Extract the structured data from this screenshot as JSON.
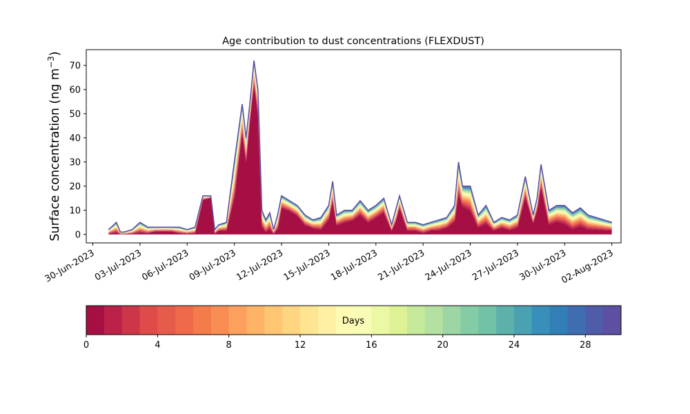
{
  "chart_data": {
    "type": "area",
    "title": "Age contribution to dust concentrations (FLEXDUST)",
    "ylabel": "Surface concentration (ng m",
    "ylabel_sup": "−3",
    "ylabel_close": ")",
    "xlabel": "",
    "x_axis": "date",
    "xlim": [
      "2023-06-29T14:00",
      "2023-08-02T14:00"
    ],
    "ylim": [
      -3.5,
      76.5
    ],
    "x_ticks": [
      "30-Jun-2023",
      "03-Jul-2023",
      "06-Jul-2023",
      "09-Jul-2023",
      "12-Jul-2023",
      "15-Jul-2023",
      "18-Jul-2023",
      "21-Jul-2023",
      "24-Jul-2023",
      "27-Jul-2023",
      "30-Jul-2023",
      "02-Aug-2023"
    ],
    "y_ticks": [
      0,
      10,
      20,
      30,
      40,
      50,
      60,
      70
    ],
    "stacked": true,
    "series_dimension": "Age (days), 30 classes 0–30, colormap Spectral",
    "total": {
      "x": [
        "2023-07-01T00:00",
        "2023-07-01T12:00",
        "2023-07-01T18:00",
        "2023-07-02T00:00",
        "2023-07-02T12:00",
        "2023-07-03T00:00",
        "2023-07-03T12:00",
        "2023-07-04T00:00",
        "2023-07-04T12:00",
        "2023-07-05T00:00",
        "2023-07-05T12:00",
        "2023-07-06T00:00",
        "2023-07-06T12:00",
        "2023-07-07T00:00",
        "2023-07-07T12:00",
        "2023-07-07T18:00",
        "2023-07-08T00:00",
        "2023-07-08T12:00",
        "2023-07-09T00:00",
        "2023-07-09T12:00",
        "2023-07-09T18:00",
        "2023-07-10T00:00",
        "2023-07-10T06:00",
        "2023-07-10T12:00",
        "2023-07-10T18:00",
        "2023-07-11T00:00",
        "2023-07-11T06:00",
        "2023-07-11T12:00",
        "2023-07-11T18:00",
        "2023-07-12T00:00",
        "2023-07-12T12:00",
        "2023-07-13T00:00",
        "2023-07-13T12:00",
        "2023-07-14T00:00",
        "2023-07-14T12:00",
        "2023-07-15T00:00",
        "2023-07-15T06:00",
        "2023-07-15T12:00",
        "2023-07-16T00:00",
        "2023-07-16T12:00",
        "2023-07-17T00:00",
        "2023-07-17T12:00",
        "2023-07-18T00:00",
        "2023-07-18T12:00",
        "2023-07-19T00:00",
        "2023-07-19T06:00",
        "2023-07-19T12:00",
        "2023-07-20T00:00",
        "2023-07-20T12:00",
        "2023-07-21T00:00",
        "2023-07-21T12:00",
        "2023-07-22T00:00",
        "2023-07-22T12:00",
        "2023-07-23T00:00",
        "2023-07-23T06:00",
        "2023-07-23T12:00",
        "2023-07-24T00:00",
        "2023-07-24T12:00",
        "2023-07-25T00:00",
        "2023-07-25T12:00",
        "2023-07-26T00:00",
        "2023-07-26T12:00",
        "2023-07-27T00:00",
        "2023-07-27T12:00",
        "2023-07-28T00:00",
        "2023-07-28T06:00",
        "2023-07-28T12:00",
        "2023-07-29T00:00",
        "2023-07-29T12:00",
        "2023-07-30T00:00",
        "2023-07-30T12:00",
        "2023-07-31T00:00",
        "2023-07-31T12:00",
        "2023-08-01T00:00",
        "2023-08-01T12:00",
        "2023-08-02T00:00"
      ],
      "y": [
        2,
        5,
        1,
        1,
        2,
        5,
        3,
        3,
        3,
        3,
        3,
        2,
        3,
        16,
        16,
        2,
        4,
        5,
        30,
        54,
        40,
        55,
        72,
        60,
        10,
        6,
        9,
        2,
        8,
        16,
        14,
        12,
        8,
        6,
        7,
        12,
        22,
        8,
        10,
        10,
        14,
        10,
        12,
        15,
        4,
        10,
        16,
        5,
        5,
        4,
        5,
        6,
        7,
        12,
        30,
        20,
        20,
        8,
        12,
        5,
        7,
        6,
        8,
        24,
        8,
        15,
        29,
        10,
        12,
        12,
        9,
        11,
        8,
        7,
        6,
        5
      ]
    },
    "youngest_fraction": {
      "y": [
        0,
        0,
        0,
        0,
        0,
        0,
        0,
        1,
        1,
        1,
        0,
        0,
        0,
        14,
        15,
        0,
        1,
        1,
        12,
        40,
        28,
        46,
        60,
        48,
        2,
        0,
        1,
        0,
        1,
        10,
        9,
        7,
        3,
        2,
        1,
        5,
        12,
        3,
        4,
        5,
        7,
        4,
        6,
        8,
        1,
        4,
        10,
        1,
        1,
        0,
        1,
        1,
        2,
        4,
        14,
        10,
        8,
        2,
        3,
        1,
        2,
        1,
        2,
        14,
        4,
        9,
        18,
        3,
        4,
        3,
        1,
        2,
        1,
        1,
        1,
        1
      ]
    },
    "colorbar": {
      "label": "Days",
      "min": 0,
      "max": 30,
      "ticks": [
        0,
        4,
        8,
        12,
        16,
        20,
        24,
        28
      ],
      "colors": [
        "#a50f44",
        "#bb2149",
        "#cd3649",
        "#de4b48",
        "#e65c4b",
        "#ef6a48",
        "#f47b4b",
        "#f88e53",
        "#fba15d",
        "#fdb466",
        "#fec672",
        "#fed580",
        "#ffe491",
        "#fff0a3",
        "#fffbb5",
        "#f8fcb5",
        "#edf8a4",
        "#def295",
        "#c6e99b",
        "#b4e0a1",
        "#9dd6a4",
        "#84cca6",
        "#70c3a6",
        "#5db1aa",
        "#4aa1b1",
        "#388fb9",
        "#327fb8",
        "#3f6db1",
        "#4e5ca9",
        "#5e4fa2"
      ]
    }
  }
}
